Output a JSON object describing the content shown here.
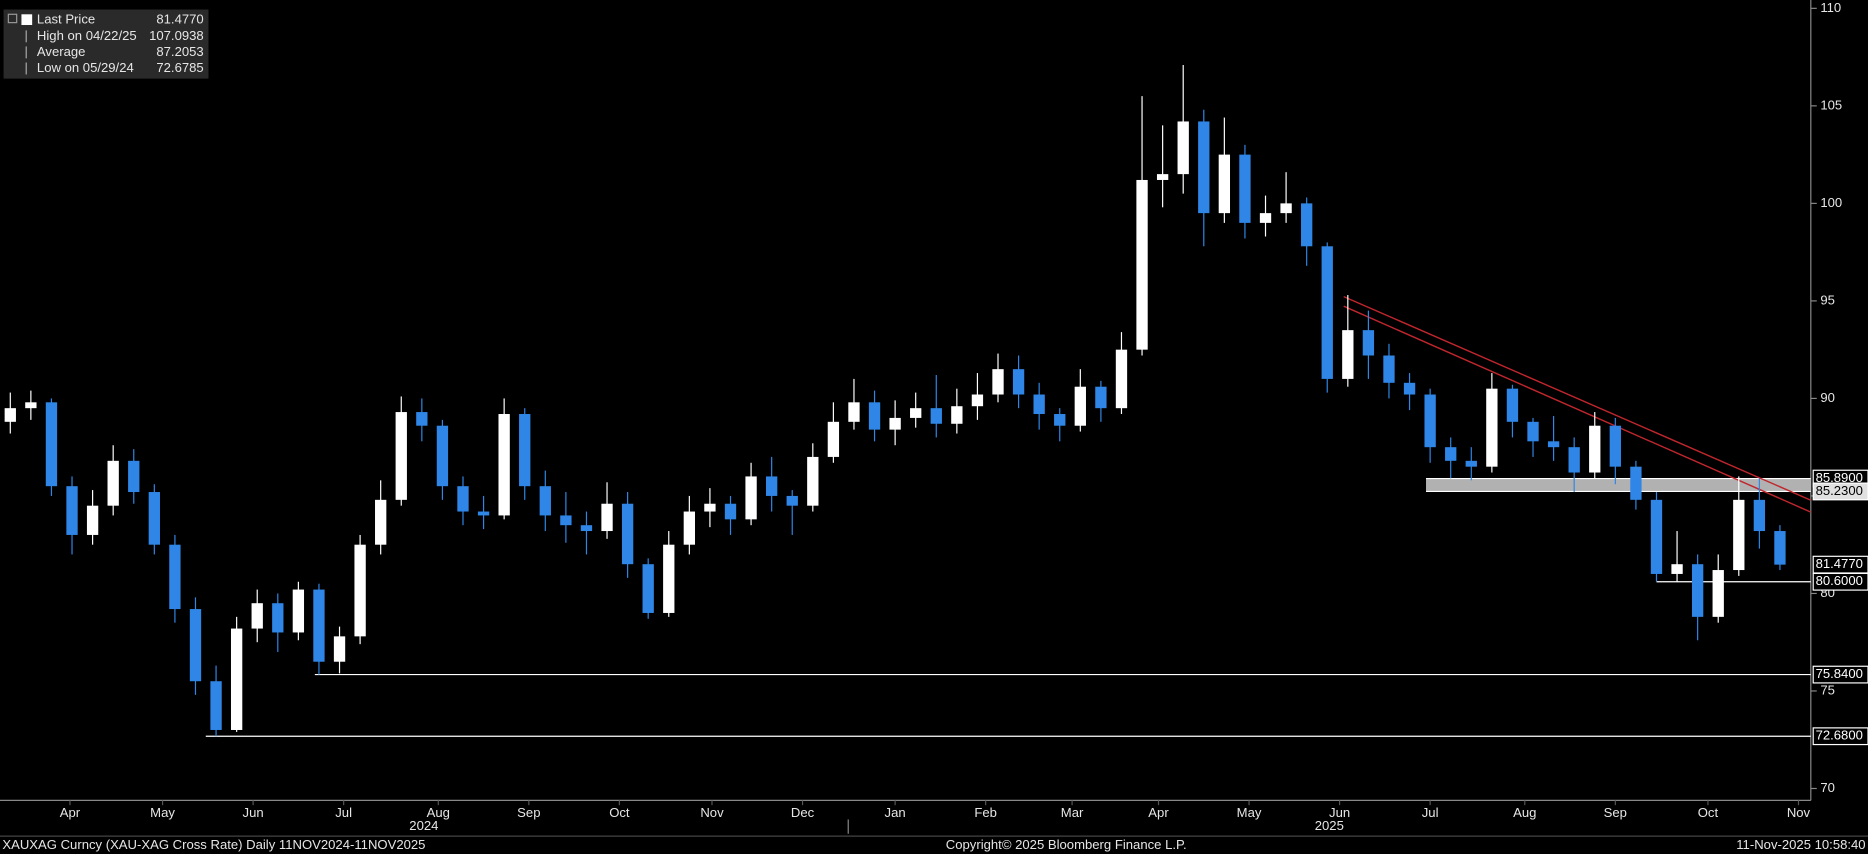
{
  "chart_data": {
    "type": "candlestick",
    "legend": [
      {
        "label": "Last Price",
        "value": "81.4770"
      },
      {
        "label": "High on 04/22/25",
        "value": "107.0938"
      },
      {
        "label": "Average",
        "value": "87.2053"
      },
      {
        "label": "Low on 05/29/24",
        "value": "72.6785"
      }
    ],
    "x": [
      0.5,
      1.5,
      2.5,
      3.5,
      4.5,
      5.5,
      6.5,
      7.5,
      8.5,
      9.5,
      10.5,
      11.5,
      12.5,
      13.5,
      14.5,
      15.5,
      16.5,
      17.5,
      18.5,
      19.5,
      20.5,
      21.5,
      22.5,
      23.5,
      24.5,
      25.5,
      26.5,
      27.5,
      28.5,
      29.5,
      30.5,
      31.5,
      32.5,
      33.5,
      34.5,
      35.5,
      36.5,
      37.5,
      38.5,
      39.5,
      40.5,
      41.5,
      42.5,
      43.5,
      44.5,
      45.5,
      46.5,
      47.5,
      48.5,
      49.5,
      50.5,
      51.5,
      52.5,
      53.5,
      54.5,
      55.5,
      56.5,
      57.5,
      58.5,
      59.5,
      60.5,
      61.5,
      62.5,
      63.5,
      64.5,
      65.5,
      66.5,
      67.5,
      68.5,
      69.5,
      70.5,
      71.5,
      72.5,
      73.5,
      74.5,
      75.5,
      76.5,
      77.5,
      78.5,
      79.5,
      80.5,
      81.5,
      82.5,
      83.5,
      84.5,
      85.5,
      86.5
    ],
    "open": [
      88.8,
      89.5,
      89.8,
      85.5,
      83.0,
      84.5,
      86.8,
      85.2,
      82.5,
      79.2,
      75.5,
      73.0,
      78.2,
      79.5,
      78.0,
      80.2,
      76.5,
      77.8,
      82.5,
      84.8,
      89.3,
      88.6,
      85.5,
      84.2,
      84.0,
      89.2,
      85.5,
      84.0,
      83.5,
      83.2,
      84.6,
      81.5,
      79.0,
      82.5,
      84.2,
      84.6,
      83.8,
      86.0,
      85.0,
      84.5,
      87.0,
      88.8,
      89.8,
      88.4,
      89.0,
      89.5,
      88.7,
      89.6,
      90.2,
      91.5,
      90.2,
      89.2,
      88.6,
      90.6,
      89.5,
      92.5,
      101.2,
      101.5,
      104.2,
      99.5,
      102.5,
      99.0,
      99.5,
      100.0,
      97.8,
      91.0,
      93.5,
      92.2,
      90.8,
      90.2,
      87.5,
      86.8,
      86.5,
      90.5,
      88.8,
      87.8,
      87.5,
      86.2,
      88.6,
      86.5,
      84.8,
      81.0,
      81.5,
      78.8,
      81.2,
      84.8,
      83.2
    ],
    "high": [
      90.3,
      90.4,
      90.0,
      86.0,
      85.3,
      87.6,
      87.4,
      85.6,
      83.0,
      79.8,
      76.3,
      78.8,
      80.2,
      80.0,
      80.6,
      80.5,
      78.3,
      83.0,
      85.8,
      90.1,
      90.0,
      88.9,
      86.0,
      85.0,
      90.0,
      89.5,
      86.3,
      85.2,
      84.2,
      85.7,
      85.2,
      81.8,
      83.2,
      85.0,
      85.4,
      85.0,
      86.7,
      87.0,
      85.3,
      87.7,
      89.8,
      91.0,
      90.4,
      89.9,
      90.3,
      91.2,
      90.5,
      91.3,
      92.3,
      92.2,
      90.8,
      89.5,
      91.5,
      90.9,
      93.4,
      105.5,
      104.0,
      107.0938,
      104.8,
      104.4,
      103.0,
      100.4,
      101.6,
      100.3,
      98.0,
      95.3,
      94.5,
      92.8,
      91.3,
      90.5,
      88.0,
      87.5,
      91.3,
      90.7,
      89.0,
      89.1,
      88.0,
      89.3,
      89.0,
      86.8,
      85.2,
      83.2,
      82.0,
      82.0,
      86.0,
      85.9,
      83.5
    ],
    "low": [
      88.2,
      88.9,
      85.0,
      82.0,
      82.5,
      84.0,
      84.6,
      82.0,
      78.5,
      74.8,
      72.6785,
      72.9,
      77.5,
      77.0,
      77.6,
      75.84,
      75.9,
      77.4,
      82.0,
      84.5,
      87.8,
      84.8,
      83.5,
      83.3,
      83.8,
      84.8,
      83.2,
      82.6,
      82.0,
      82.8,
      80.8,
      78.7,
      78.8,
      82.0,
      83.4,
      83.0,
      83.5,
      84.2,
      83.0,
      84.2,
      86.7,
      88.4,
      87.8,
      87.6,
      88.5,
      88.0,
      88.2,
      88.9,
      89.8,
      89.5,
      88.4,
      87.8,
      88.3,
      88.8,
      89.2,
      92.2,
      99.8,
      100.5,
      97.8,
      99.0,
      98.2,
      98.3,
      99.0,
      96.8,
      90.3,
      90.6,
      91.0,
      90.0,
      89.4,
      86.7,
      85.9,
      85.8,
      86.2,
      88.0,
      87.0,
      86.8,
      85.2,
      85.9,
      85.6,
      84.3,
      80.6,
      80.6,
      77.6,
      78.5,
      80.9,
      82.3,
      81.2
    ],
    "close": [
      89.5,
      89.8,
      85.5,
      83.0,
      84.5,
      86.8,
      85.2,
      82.5,
      79.2,
      75.5,
      73.0,
      78.2,
      79.5,
      78.0,
      80.2,
      76.5,
      77.8,
      82.5,
      84.8,
      89.3,
      88.6,
      85.5,
      84.2,
      84.0,
      89.2,
      85.5,
      84.0,
      83.5,
      83.2,
      84.6,
      81.5,
      79.0,
      82.5,
      84.2,
      84.6,
      83.8,
      86.0,
      85.0,
      84.5,
      87.0,
      88.8,
      89.8,
      88.4,
      89.0,
      89.5,
      88.7,
      89.6,
      90.2,
      91.5,
      90.2,
      89.2,
      88.6,
      90.6,
      89.5,
      92.5,
      101.2,
      101.5,
      104.2,
      99.5,
      102.5,
      99.0,
      99.5,
      100.0,
      97.8,
      91.0,
      93.5,
      92.2,
      90.8,
      90.2,
      87.5,
      86.8,
      86.5,
      90.5,
      88.8,
      87.8,
      87.5,
      86.2,
      88.6,
      86.5,
      84.8,
      81.0,
      81.5,
      78.8,
      81.2,
      84.8,
      83.2,
      81.477
    ],
    "up_color": "#ffffff",
    "down_color": "#2f86e6",
    "xlim": [
      0,
      88
    ],
    "xticks": [
      {
        "value": 3.4,
        "label": "Apr"
      },
      {
        "value": 7.9,
        "label": "May"
      },
      {
        "value": 12.3,
        "label": "Jun"
      },
      {
        "value": 16.7,
        "label": "Jul"
      },
      {
        "value": 21.3,
        "label": "Aug"
      },
      {
        "value": 25.7,
        "label": "Sep"
      },
      {
        "value": 30.1,
        "label": "Oct"
      },
      {
        "value": 34.6,
        "label": "Nov"
      },
      {
        "value": 39.0,
        "label": "Dec"
      },
      {
        "value": 43.5,
        "label": "Jan"
      },
      {
        "value": 47.9,
        "label": "Feb"
      },
      {
        "value": 52.1,
        "label": "Mar"
      },
      {
        "value": 56.3,
        "label": "Apr"
      },
      {
        "value": 60.7,
        "label": "May"
      },
      {
        "value": 65.1,
        "label": "Jun"
      },
      {
        "value": 69.5,
        "label": "Jul"
      },
      {
        "value": 74.1,
        "label": "Aug"
      },
      {
        "value": 78.5,
        "label": "Sep"
      },
      {
        "value": 83.0,
        "label": "Oct"
      },
      {
        "value": 87.4,
        "label": "Nov"
      }
    ],
    "years": [
      {
        "value": 20.6,
        "label": "2024"
      },
      {
        "value": 64.6,
        "label": "2025"
      }
    ],
    "ylim": [
      70,
      110
    ],
    "yticks": [
      70,
      75,
      80,
      85,
      90,
      95,
      100,
      105,
      110
    ],
    "grid": false,
    "levels": [
      {
        "value": 85.89,
        "label": "85.8900",
        "start": 69.3
      },
      {
        "value": 85.23,
        "label": "85.2300",
        "start": 69.3
      },
      {
        "value": 80.6,
        "label": "80.6000",
        "start": 80.5
      },
      {
        "value": 75.84,
        "label": "75.8400",
        "start": 15.3
      },
      {
        "value": 72.68,
        "label": "72.6800",
        "start": 10.0
      }
    ],
    "trendlines": [
      {
        "start": [
          65.3,
          95.22
        ],
        "end": [
          88,
          84.78
        ]
      },
      {
        "start": [
          65.3,
          94.73
        ],
        "end": [
          88,
          84.17
        ]
      }
    ],
    "trend_color": "#c0262d",
    "footer": {
      "left": "XAUXAG Curncy (XAU-XAG Cross Rate) Daily 11NOV2024-11NOV2025",
      "center": "Copyright© 2025 Bloomberg Finance L.P.",
      "right": "11-Nov-2025 10:58:40"
    }
  }
}
